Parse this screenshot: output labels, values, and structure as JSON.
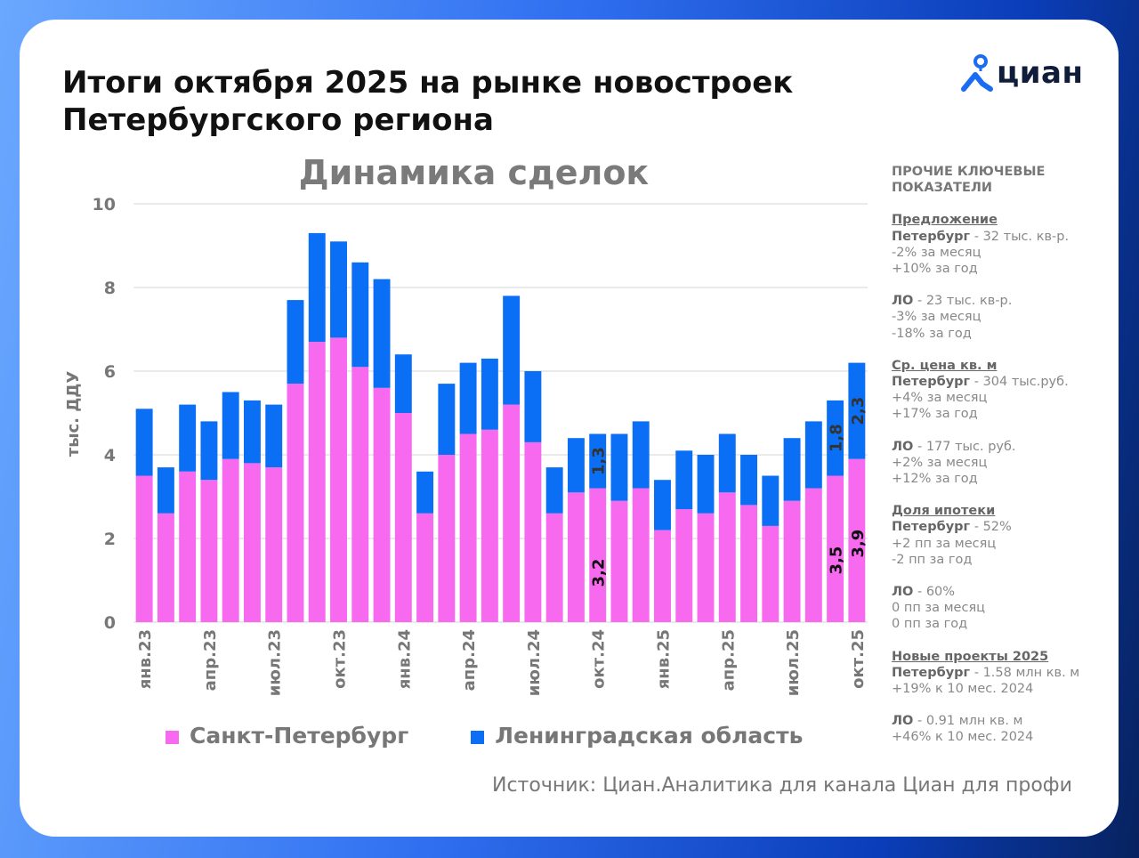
{
  "header": {
    "title_line1": "Итоги октября 2025 на рынке новостроек",
    "title_line2": "Петербургского региона",
    "logo_text": "циан"
  },
  "colors": {
    "spb": "#f76af0",
    "lo": "#0a6ff5",
    "accent": "#1a6cf2"
  },
  "chart_data": {
    "type": "bar",
    "stacked": true,
    "title": "Динамика сделок",
    "ylabel": "тыс. ДДУ",
    "xlabel": "",
    "ylim": [
      0,
      10
    ],
    "yticks": [
      0,
      2,
      4,
      6,
      8,
      10
    ],
    "grid": true,
    "legend_position": "bottom",
    "categories": [
      "янв.23",
      "фев.23",
      "мар.23",
      "апр.23",
      "май.23",
      "июн.23",
      "июл.23",
      "авг.23",
      "сен.23",
      "окт.23",
      "ноя.23",
      "дек.23",
      "янв.24",
      "фев.24",
      "мар.24",
      "апр.24",
      "май.24",
      "июн.24",
      "июл.24",
      "авг.24",
      "сен.24",
      "окт.24",
      "ноя.24",
      "дек.24",
      "янв.25",
      "фев.25",
      "мар.25",
      "апр.25",
      "май.25",
      "июн.25",
      "июл.25",
      "авг.25",
      "сен.25",
      "окт.25"
    ],
    "x_tick_labels": {
      "0": "янв.23",
      "3": "апр.23",
      "6": "июл.23",
      "9": "окт.23",
      "12": "янв.24",
      "15": "апр.24",
      "18": "июл.24",
      "21": "окт.24",
      "24": "янв.25",
      "27": "апр.25",
      "30": "июл.25",
      "33": "окт.25"
    },
    "series": [
      {
        "name": "Санкт-Петербург",
        "values": [
          3.5,
          2.6,
          3.6,
          3.4,
          3.9,
          3.8,
          3.7,
          5.7,
          6.7,
          6.8,
          6.1,
          5.6,
          5.0,
          2.6,
          4.0,
          4.5,
          4.6,
          5.2,
          4.3,
          2.6,
          3.1,
          3.2,
          2.9,
          3.2,
          2.2,
          2.7,
          2.6,
          3.1,
          2.8,
          2.3,
          2.9,
          3.2,
          3.5,
          3.9
        ]
      },
      {
        "name": "Ленинградская область",
        "values": [
          1.6,
          1.1,
          1.6,
          1.4,
          1.6,
          1.5,
          1.5,
          2.0,
          2.6,
          2.3,
          2.5,
          2.6,
          1.4,
          1.0,
          1.7,
          1.7,
          1.7,
          2.6,
          1.7,
          1.1,
          1.3,
          1.3,
          1.6,
          1.6,
          1.2,
          1.4,
          1.4,
          1.4,
          1.2,
          1.2,
          1.5,
          1.6,
          1.8,
          2.3
        ]
      }
    ],
    "data_labels": [
      {
        "index": 21,
        "series": 0,
        "text": "3,2"
      },
      {
        "index": 21,
        "series": 1,
        "text": "1,3"
      },
      {
        "index": 32,
        "series": 0,
        "text": "3,5"
      },
      {
        "index": 32,
        "series": 1,
        "text": "1,8"
      },
      {
        "index": 33,
        "series": 0,
        "text": "3,9"
      },
      {
        "index": 33,
        "series": 1,
        "text": "2,3"
      }
    ]
  },
  "side_panel": {
    "heading_line1": "ПРОЧИЕ КЛЮЧЕВЫЕ",
    "heading_line2": "ПОКАЗАТЕЛИ",
    "sections": [
      {
        "title": "Предложение",
        "blocks": [
          {
            "region": "Петербург",
            "value": " - 32 тыс. кв-р.",
            "lines": [
              "-2% за месяц",
              "+10% за год"
            ]
          },
          {
            "region": "ЛО",
            "value": " - 23 тыс. кв-р.",
            "lines": [
              "-3% за месяц",
              "-18% за год"
            ]
          }
        ]
      },
      {
        "title": "Ср. цена кв. м",
        "blocks": [
          {
            "region": "Петербург",
            "value": " - 304 тыс.руб.",
            "lines": [
              "+4% за месяц",
              "+17% за год"
            ]
          },
          {
            "region": "ЛО",
            "value": " - 177 тыс. руб.",
            "lines": [
              "+2% за месяц",
              "+12% за год"
            ]
          }
        ]
      },
      {
        "title": "Доля ипотеки",
        "blocks": [
          {
            "region": "Петербург",
            "value": " - 52%",
            "lines": [
              "+2 пп за месяц",
              "-2 пп за год"
            ]
          },
          {
            "region": "ЛО",
            "value": " - 60%",
            "lines": [
              "0 пп за месяц",
              "0 пп за год"
            ]
          }
        ]
      },
      {
        "title": "Новые проекты 2025",
        "blocks": [
          {
            "region": "Петербург",
            "value": " - 1.58 млн кв. м",
            "lines": [
              "+19% к 10 мес. 2024"
            ]
          },
          {
            "region": "ЛО",
            "value": " - 0.91 млн кв. м",
            "lines": [
              "+46% к 10 мес. 2024"
            ]
          }
        ]
      }
    ]
  },
  "source": "Источник: Циан.Аналитика для канала Циан для профи"
}
